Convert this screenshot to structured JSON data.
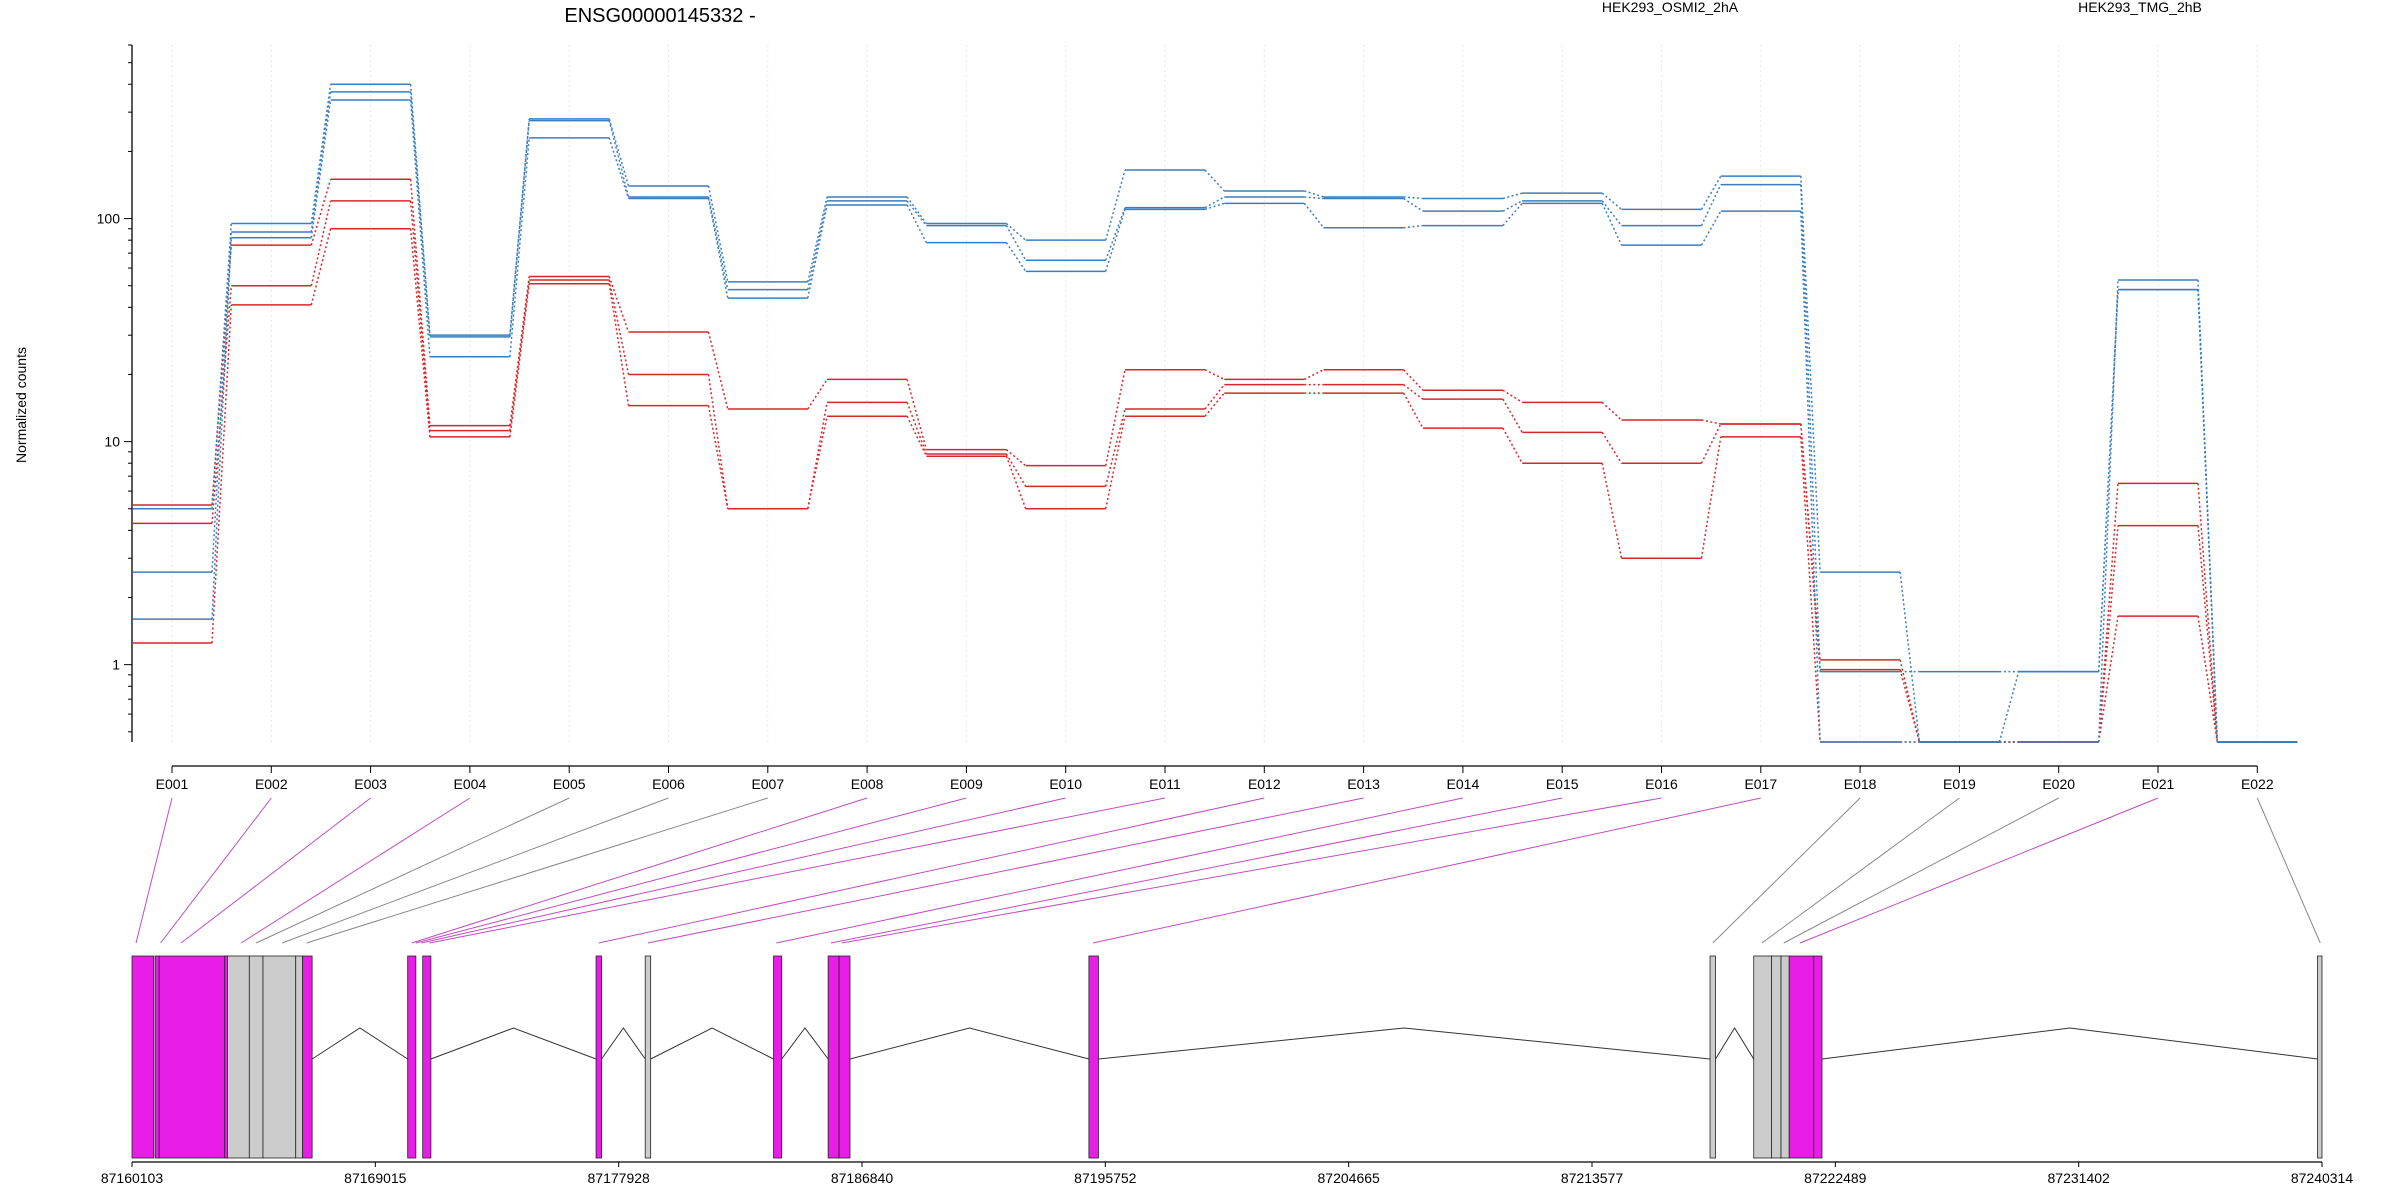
{
  "title": "ENSG00000145332 -",
  "ylabel": "Normalized counts",
  "legend": [
    {
      "label": "HEK293_OSMI2_2hA",
      "color": "#d62728"
    },
    {
      "label": "HEK293_TMG_2hB",
      "color": "#3a7ebf"
    }
  ],
  "colors": {
    "exon_dexseq": "#e81ee8",
    "exon_plain": "#cccccc",
    "connector_dexseq": "#c04cc0",
    "connector_plain": "#888888"
  },
  "chart_data": {
    "type": "line",
    "y_scale": "log",
    "ylim": [
      0.45,
      600
    ],
    "y_ticks": [
      1,
      10,
      100
    ],
    "y_tick_labels": [
      "1",
      "10",
      "100"
    ],
    "categories": [
      "E001",
      "E002",
      "E003",
      "E004",
      "E005",
      "E006",
      "E007",
      "E008",
      "E009",
      "E010",
      "E011",
      "E012",
      "E013",
      "E014",
      "E015",
      "E016",
      "E017",
      "E018",
      "E019",
      "E020",
      "E021",
      "E022"
    ],
    "series": [
      {
        "group": "HEK293_OSMI2_2hA",
        "values": [
          5.2,
          76,
          150,
          11.8,
          55,
          31,
          14,
          19,
          9.2,
          7.8,
          21,
          19,
          21,
          17,
          15,
          12.5,
          12,
          1.05,
          0.45,
          0.45,
          6.5,
          0.45
        ]
      },
      {
        "group": "HEK293_OSMI2_2hA",
        "values": [
          4.3,
          50,
          120,
          11.2,
          53,
          20,
          5,
          15,
          8.8,
          6.3,
          14,
          18,
          18,
          15.5,
          11,
          8,
          12,
          0.95,
          0.45,
          0.45,
          4.2,
          0.45
        ]
      },
      {
        "group": "HEK293_OSMI2_2hA",
        "values": [
          1.25,
          41,
          90,
          10.5,
          51,
          14.5,
          5,
          13,
          8.6,
          5,
          13,
          16.5,
          16.5,
          11.5,
          8,
          3,
          10.5,
          0.45,
          0.45,
          0.45,
          1.65,
          0.45
        ]
      },
      {
        "group": "HEK293_TMG_2hB",
        "values": [
          5,
          95,
          400,
          30,
          280,
          140,
          52,
          125,
          95,
          80,
          165,
          133,
          125,
          123,
          130,
          110,
          155,
          2.6,
          0.45,
          0.45,
          53,
          0.45
        ]
      },
      {
        "group": "HEK293_TMG_2hB",
        "values": [
          2.6,
          87,
          370,
          29.5,
          275,
          125,
          48,
          120,
          93,
          65,
          112,
          125,
          123,
          108,
          120,
          93,
          142,
          0.93,
          0.93,
          0.93,
          48,
          0.45
        ]
      },
      {
        "group": "HEK293_TMG_2hB",
        "values": [
          1.6,
          82,
          340,
          24,
          230,
          123,
          44,
          115,
          78,
          58,
          110,
          117,
          91,
          93,
          117,
          76,
          108,
          0.45,
          0.45,
          0.93,
          48,
          0.45
        ]
      }
    ]
  },
  "gene_model": {
    "coord_ticks": [
      "87160103",
      "87169015",
      "87177928",
      "87186840",
      "87195752",
      "87204665",
      "87213577",
      "87222489",
      "87231402",
      "87240314"
    ]
  }
}
